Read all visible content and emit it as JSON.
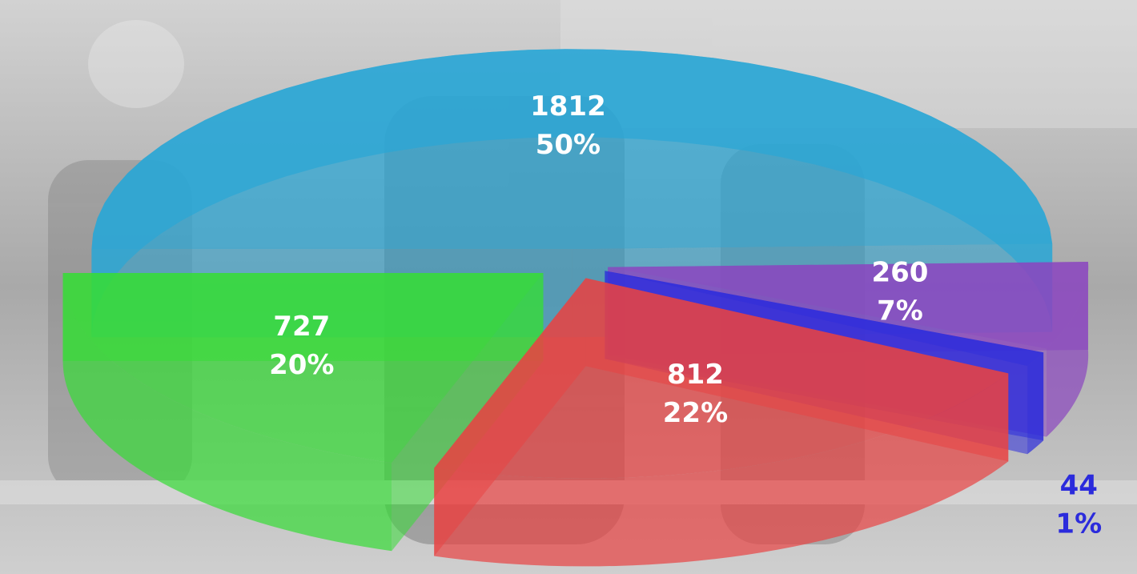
{
  "chart_data": {
    "type": "pie3d",
    "values": [
      1812,
      260,
      44,
      812,
      727
    ],
    "percent_labels": [
      "50%",
      "7%",
      "1%",
      "22%",
      "20%"
    ],
    "colors": [
      "#2aa6d6",
      "#8a46bf",
      "#2b2bdc",
      "#e84343",
      "#36dc36"
    ]
  }
}
